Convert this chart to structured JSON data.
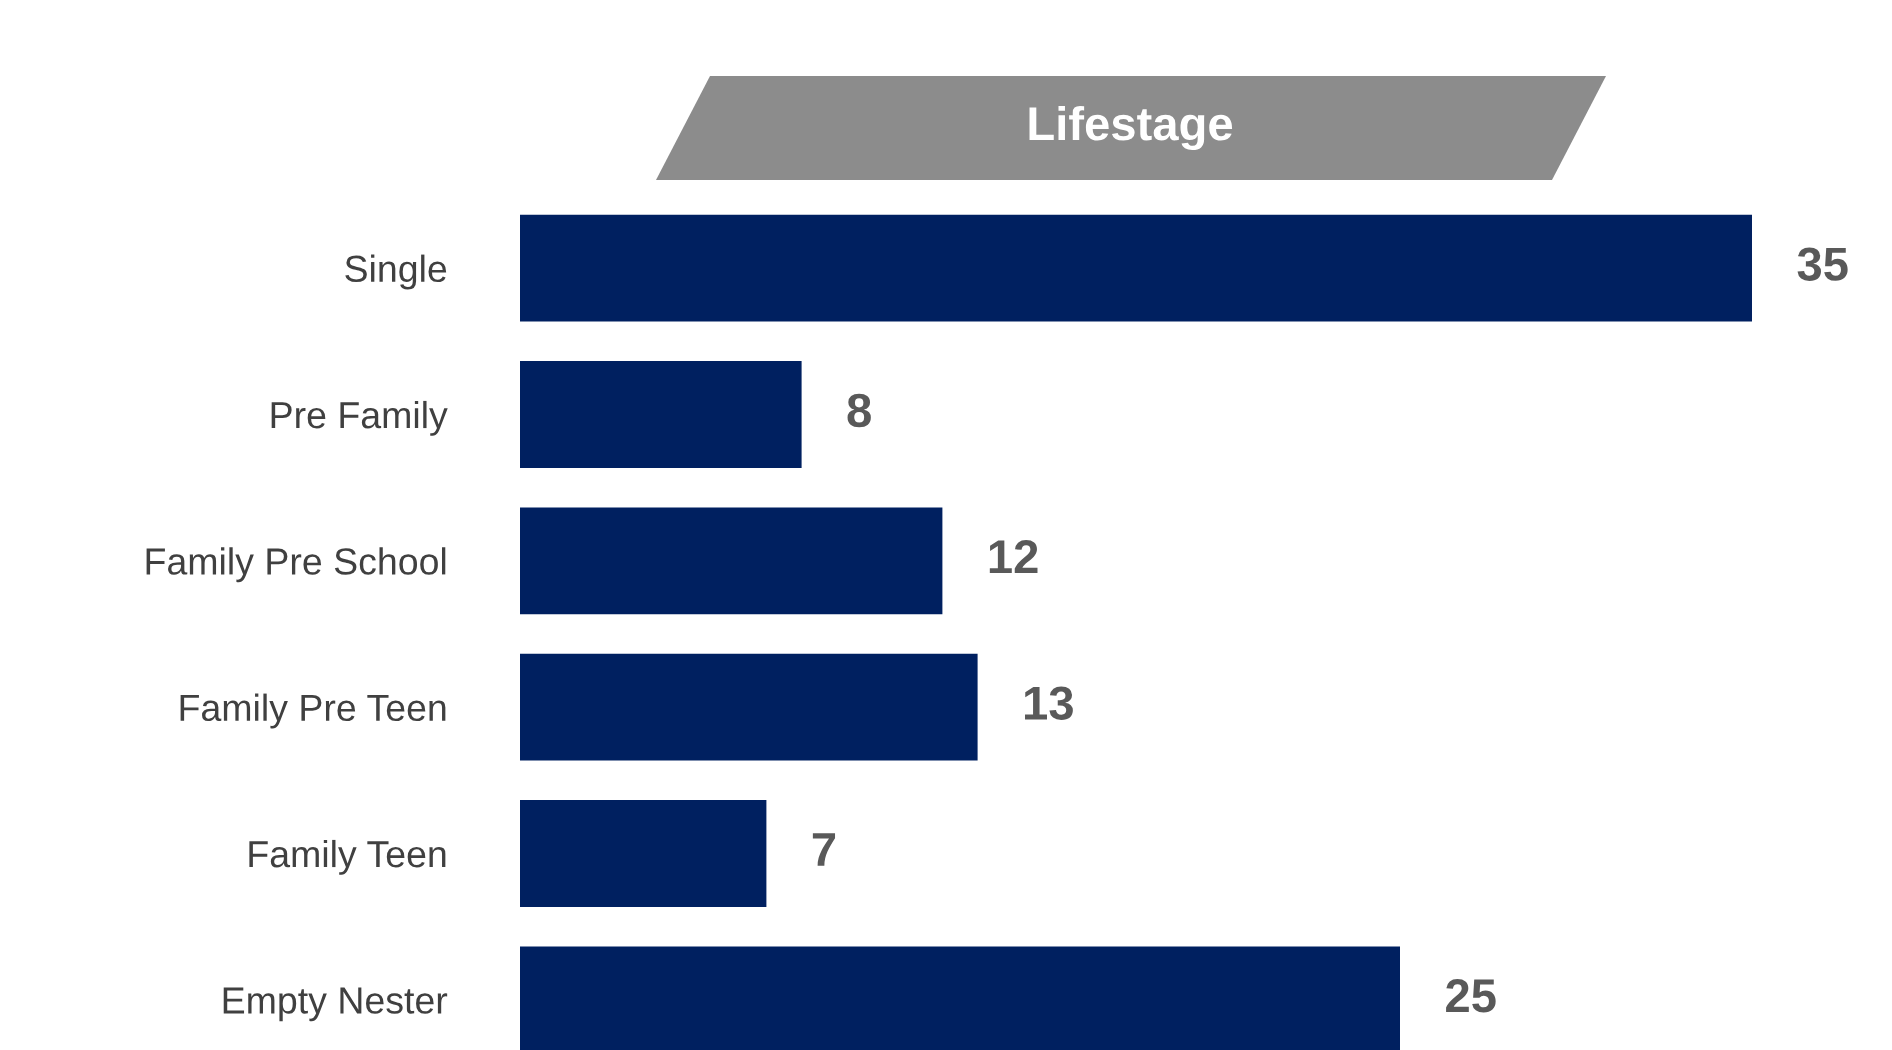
{
  "chart_data": {
    "type": "bar",
    "orientation": "horizontal",
    "title": "Lifestage",
    "categories": [
      "Single",
      "Pre Family",
      "Family Pre School",
      "Family Pre Teen",
      "Family Teen",
      "Empty Nester"
    ],
    "values": [
      35,
      8,
      12,
      13,
      7,
      25
    ],
    "color": "#002060",
    "data_labels": true,
    "xlim": [
      0,
      35
    ],
    "grid": false
  }
}
